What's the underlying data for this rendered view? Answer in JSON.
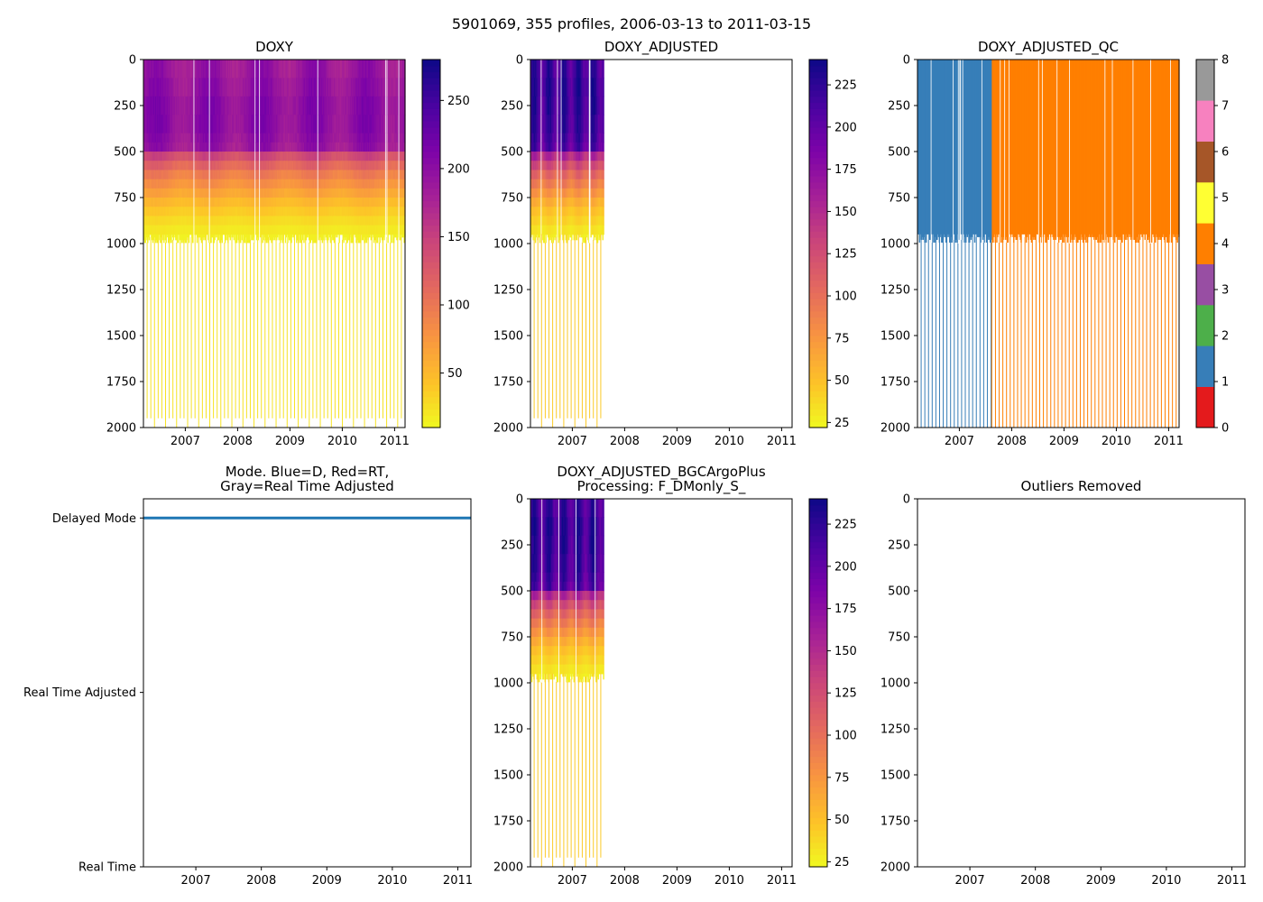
{
  "figure": {
    "suptitle": "5901069, 355 profiles, 2006-03-13 to 2011-03-15"
  },
  "chart_data": [
    {
      "id": "doxy",
      "type": "heatmap",
      "title": "DOXY",
      "xlabel": "",
      "ylabel": "",
      "x_ticks": [
        "2007",
        "2008",
        "2009",
        "2010",
        "2011"
      ],
      "y_ticks": [
        "0",
        "250",
        "500",
        "750",
        "1000",
        "1250",
        "1500",
        "1750",
        "2000"
      ],
      "xlim": [
        2006.2,
        2011.2
      ],
      "ylim": [
        2000,
        0
      ],
      "x_start": 2006.2,
      "x_end": 2011.2,
      "colormap": "plasma_r",
      "colorbar": {
        "min": 10,
        "max": 280,
        "ticks": [
          "50",
          "100",
          "150",
          "200",
          "250"
        ],
        "tick_values": [
          50,
          100,
          150,
          200,
          250
        ]
      },
      "depth_levels": [
        0,
        100,
        200,
        300,
        400,
        450,
        500,
        550,
        600,
        650,
        700,
        750,
        800,
        850,
        900,
        950
      ],
      "profile_values": [
        190,
        195,
        200,
        200,
        195,
        190,
        140,
        115,
        95,
        80,
        65,
        50,
        38,
        28,
        20,
        15
      ],
      "note": "Shallow layer ~180-200 umol/kg, decreasing to ~15 near 950 dbar; thin deep profile lines reach 2000 dbar"
    },
    {
      "id": "doxy_adjusted",
      "type": "heatmap",
      "title": "DOXY_ADJUSTED",
      "xlabel": "",
      "ylabel": "",
      "x_ticks": [
        "2007",
        "2008",
        "2009",
        "2010",
        "2011"
      ],
      "y_ticks": [
        "0",
        "250",
        "500",
        "750",
        "1000",
        "1250",
        "1500",
        "1750",
        "2000"
      ],
      "xlim": [
        2006.2,
        2011.2
      ],
      "ylim": [
        2000,
        0
      ],
      "x_start": 2006.2,
      "x_end": 2007.6,
      "colormap": "plasma_r",
      "colorbar": {
        "min": 22,
        "max": 240,
        "ticks": [
          "25",
          "50",
          "75",
          "100",
          "125",
          "150",
          "175",
          "200",
          "225"
        ],
        "tick_values": [
          25,
          50,
          75,
          100,
          125,
          150,
          175,
          200,
          225
        ]
      },
      "depth_levels": [
        0,
        100,
        200,
        300,
        400,
        450,
        500,
        550,
        600,
        650,
        700,
        750,
        800,
        850,
        900,
        950
      ],
      "profile_values": [
        215,
        220,
        218,
        215,
        210,
        205,
        150,
        125,
        105,
        90,
        75,
        60,
        48,
        40,
        32,
        28
      ],
      "note": "Adjusted data only 2006-03 to ~2007-08"
    },
    {
      "id": "doxy_adjusted_qc",
      "type": "heatmap",
      "title": "DOXY_ADJUSTED_QC",
      "xlabel": "",
      "ylabel": "",
      "x_ticks": [
        "2007",
        "2008",
        "2009",
        "2010",
        "2011"
      ],
      "y_ticks": [
        "0",
        "250",
        "500",
        "750",
        "1000",
        "1250",
        "1500",
        "1750",
        "2000"
      ],
      "xlim": [
        2006.2,
        2011.2
      ],
      "ylim": [
        2000,
        0
      ],
      "segments": [
        {
          "flag": 1,
          "x_start": 2006.2,
          "x_end": 2007.62
        },
        {
          "flag": 4,
          "x_start": 2007.62,
          "x_end": 2011.2
        }
      ],
      "colorbar": {
        "min": 0,
        "max": 8,
        "ticks": [
          "0",
          "1",
          "2",
          "3",
          "4",
          "5",
          "6",
          "7",
          "8"
        ],
        "tick_values": [
          0,
          1,
          2,
          3,
          4,
          5,
          6,
          7,
          8
        ],
        "colors": [
          "#e41a1c",
          "#377eb8",
          "#4daf4a",
          "#984ea3",
          "#ff7f00",
          "#ffff33",
          "#a65628",
          "#f781bf",
          "#999999"
        ]
      }
    },
    {
      "id": "mode",
      "type": "line",
      "title": "Mode. Blue=D, Red=RT,",
      "subtitle": "Gray=Real Time Adjusted",
      "xlabel": "",
      "ylabel": "",
      "x_ticks": [
        "2007",
        "2008",
        "2009",
        "2010",
        "2011"
      ],
      "y_ticks": [
        "Delayed Mode",
        "Real Time Adjusted",
        "Real Time"
      ],
      "y_tick_values": [
        2,
        1,
        0
      ],
      "xlim": [
        2006.2,
        2011.2
      ],
      "ylim": [
        -0.0,
        2.11
      ],
      "series": [
        {
          "name": "Delayed Mode",
          "color": "#1f77b4",
          "x": [
            2006.2,
            2011.2
          ],
          "y": [
            2,
            2
          ]
        }
      ]
    },
    {
      "id": "doxy_bgcargoplus",
      "type": "heatmap",
      "title": "DOXY_ADJUSTED_BGCArgoPlus",
      "subtitle": "Processing: F_DMonly_S_",
      "xlabel": "",
      "ylabel": "",
      "x_ticks": [
        "2007",
        "2008",
        "2009",
        "2010",
        "2011"
      ],
      "y_ticks": [
        "0",
        "250",
        "500",
        "750",
        "1000",
        "1250",
        "1500",
        "1750",
        "2000"
      ],
      "xlim": [
        2006.2,
        2011.2
      ],
      "ylim": [
        2000,
        0
      ],
      "x_start": 2006.2,
      "x_end": 2007.6,
      "colormap": "plasma_r",
      "colorbar": {
        "min": 22,
        "max": 240,
        "ticks": [
          "25",
          "50",
          "75",
          "100",
          "125",
          "150",
          "175",
          "200",
          "225"
        ],
        "tick_values": [
          25,
          50,
          75,
          100,
          125,
          150,
          175,
          200,
          225
        ]
      },
      "depth_levels": [
        0,
        100,
        200,
        300,
        400,
        450,
        500,
        550,
        600,
        650,
        700,
        750,
        800,
        850,
        900,
        950
      ],
      "profile_values": [
        215,
        220,
        218,
        215,
        210,
        205,
        150,
        125,
        105,
        90,
        75,
        60,
        48,
        40,
        32,
        28
      ]
    },
    {
      "id": "outliers",
      "type": "scatter",
      "title": "Outliers Removed",
      "xlabel": "",
      "ylabel": "",
      "x_ticks": [
        "2007",
        "2008",
        "2009",
        "2010",
        "2011"
      ],
      "y_ticks": [
        "0",
        "250",
        "500",
        "750",
        "1000",
        "1250",
        "1500",
        "1750",
        "2000"
      ],
      "xlim": [
        2006.2,
        2011.2
      ],
      "ylim": [
        2000,
        0
      ],
      "points": []
    }
  ]
}
